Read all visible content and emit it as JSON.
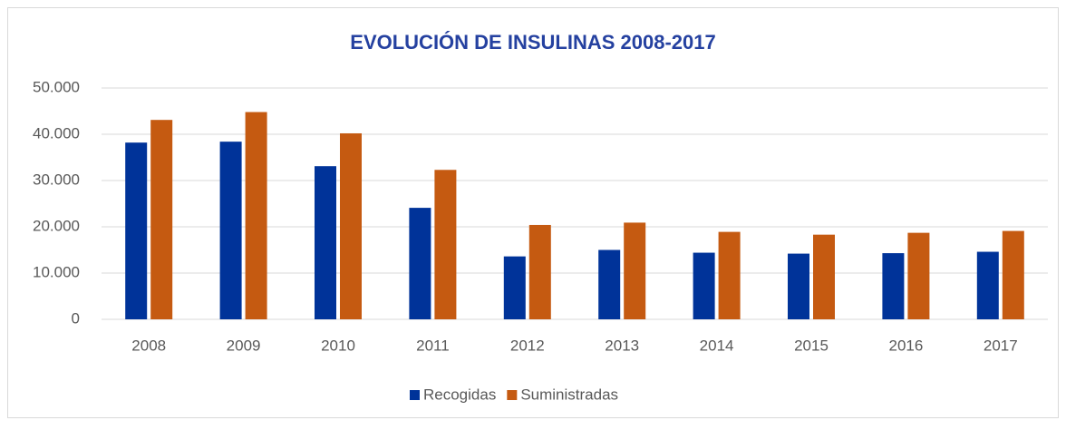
{
  "chart_data": {
    "type": "bar",
    "title": "EVOLUCIÓN DE INSULINAS 2008-2017",
    "categories": [
      "2008",
      "2009",
      "2010",
      "2011",
      "2012",
      "2013",
      "2014",
      "2015",
      "2016",
      "2017"
    ],
    "series": [
      {
        "name": "Recogidas",
        "color": "#003399",
        "values": [
          38200,
          38400,
          33100,
          24100,
          13600,
          15000,
          14400,
          14200,
          14300,
          14600
        ]
      },
      {
        "name": "Suministradas",
        "color": "#c55a11",
        "values": [
          43100,
          44800,
          40200,
          32300,
          20400,
          20900,
          18900,
          18300,
          18700,
          19100
        ]
      }
    ],
    "ylim": [
      0,
      50000
    ],
    "yticks": [
      0,
      {
        "value": 10000,
        "label": "10.000"
      },
      {
        "value": 20000,
        "label": "20.000"
      },
      {
        "value": 30000,
        "label": "30.000"
      },
      {
        "value": 40000,
        "label": "40.000"
      },
      {
        "value": 50000,
        "label": "50.000"
      }
    ],
    "grid": true,
    "legend": "bottom"
  }
}
